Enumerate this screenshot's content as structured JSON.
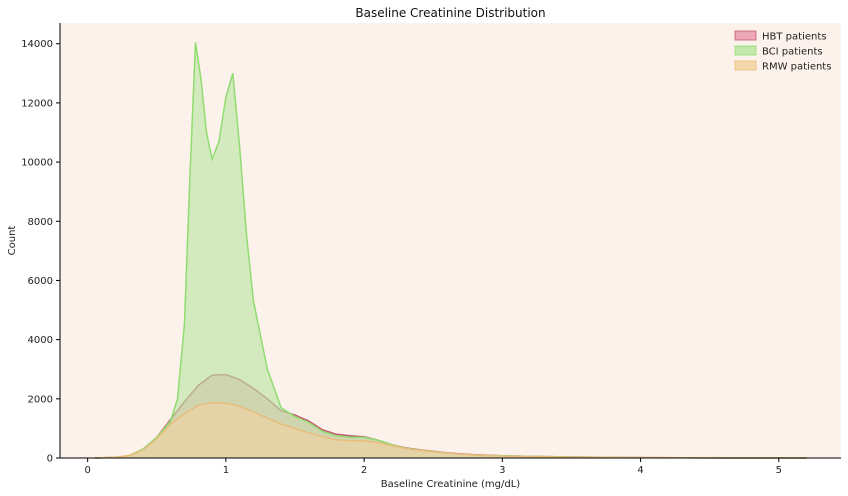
{
  "chart_data": {
    "type": "area",
    "title": "Baseline Creatinine Distribution",
    "xlabel": "Baseline Creatinine (mg/dL)",
    "ylabel": "Count",
    "xlim": [
      -0.2,
      5.45
    ],
    "ylim": [
      0,
      14700
    ],
    "xticks": [
      0,
      1,
      2,
      3,
      4,
      5
    ],
    "yticks": [
      0,
      2000,
      4000,
      6000,
      8000,
      10000,
      12000,
      14000
    ],
    "grid": false,
    "legend_position": "top-right",
    "background_color": "#fdf1ec",
    "series": [
      {
        "name": "HBT patients",
        "fill": "#eb9aae",
        "line": "#c45a6e",
        "x": [
          0.05,
          0.2,
          0.3,
          0.4,
          0.5,
          0.6,
          0.7,
          0.8,
          0.9,
          1.0,
          1.1,
          1.2,
          1.3,
          1.4,
          1.5,
          1.6,
          1.7,
          1.8,
          1.9,
          2.0,
          2.1,
          2.2,
          2.3,
          2.4,
          2.5,
          2.6,
          2.7,
          2.8,
          2.9,
          3.0,
          3.2,
          3.4,
          3.6,
          3.8,
          4.0,
          4.3,
          4.6,
          5.0,
          5.2
        ],
        "y": [
          0,
          20,
          80,
          280,
          700,
          1300,
          1900,
          2450,
          2800,
          2820,
          2650,
          2350,
          2000,
          1600,
          1450,
          1250,
          950,
          800,
          750,
          720,
          600,
          450,
          340,
          280,
          230,
          180,
          140,
          110,
          90,
          75,
          55,
          40,
          30,
          20,
          14,
          8,
          5,
          2,
          0
        ]
      },
      {
        "name": "BCI patients",
        "fill": "#b8e6a0",
        "line": "#8fdc6f",
        "x": [
          0.05,
          0.2,
          0.3,
          0.4,
          0.5,
          0.6,
          0.65,
          0.7,
          0.74,
          0.78,
          0.82,
          0.86,
          0.9,
          0.95,
          1.0,
          1.05,
          1.1,
          1.15,
          1.2,
          1.3,
          1.4,
          1.5,
          1.6,
          1.7,
          1.8,
          1.9,
          2.0,
          2.1,
          2.2,
          2.3,
          2.4,
          2.5,
          2.6,
          2.7,
          2.8,
          2.9,
          3.0,
          3.2,
          3.4,
          3.6,
          3.8,
          4.0,
          4.3,
          4.6,
          5.0,
          5.2
        ],
        "y": [
          0,
          20,
          80,
          300,
          700,
          1250,
          2000,
          4500,
          9500,
          14050,
          12800,
          11000,
          10100,
          10700,
          12200,
          13000,
          10500,
          7500,
          5300,
          3000,
          1700,
          1400,
          1200,
          900,
          750,
          700,
          700,
          600,
          450,
          330,
          270,
          220,
          170,
          130,
          100,
          85,
          75,
          55,
          40,
          30,
          20,
          14,
          8,
          5,
          2,
          0
        ]
      },
      {
        "name": "RMW patients",
        "fill": "#f2d2a0",
        "line": "#e8bd7c",
        "x": [
          0.05,
          0.2,
          0.3,
          0.4,
          0.5,
          0.6,
          0.7,
          0.8,
          0.9,
          1.0,
          1.1,
          1.2,
          1.3,
          1.4,
          1.5,
          1.6,
          1.7,
          1.8,
          1.9,
          2.0,
          2.1,
          2.2,
          2.3,
          2.4,
          2.5,
          2.6,
          2.7,
          2.8,
          2.9,
          3.0,
          3.2,
          3.4,
          3.6,
          3.8,
          4.0,
          4.3,
          4.6,
          5.0,
          5.2
        ],
        "y": [
          0,
          20,
          80,
          270,
          650,
          1150,
          1500,
          1780,
          1870,
          1860,
          1750,
          1550,
          1350,
          1150,
          1000,
          850,
          720,
          620,
          580,
          580,
          520,
          420,
          320,
          260,
          210,
          170,
          130,
          100,
          80,
          65,
          50,
          35,
          25,
          18,
          12,
          7,
          4,
          2,
          0
        ]
      }
    ]
  }
}
